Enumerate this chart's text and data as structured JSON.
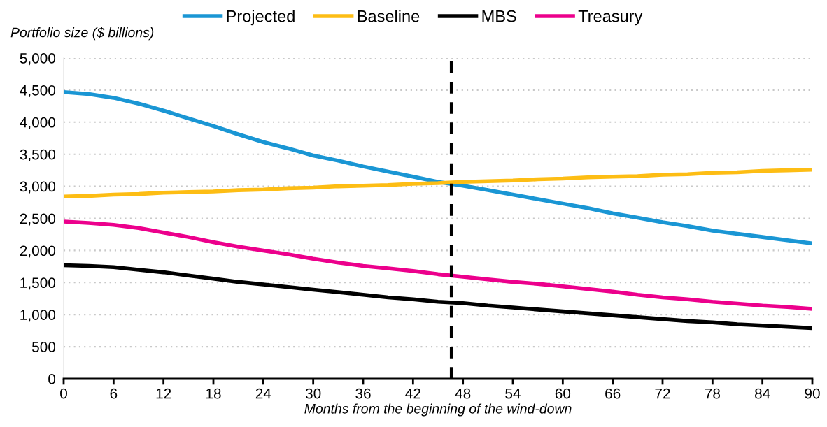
{
  "chart_data": {
    "type": "line",
    "xlabel": "Months from the beginning of the wind-down",
    "ylabel": "Portfolio size ($ billions)",
    "x": [
      0,
      3,
      6,
      9,
      12,
      15,
      18,
      21,
      24,
      27,
      30,
      33,
      36,
      39,
      42,
      45,
      48,
      51,
      54,
      57,
      60,
      63,
      66,
      69,
      72,
      75,
      78,
      81,
      84,
      87,
      90
    ],
    "series": [
      {
        "name": "Projected",
        "color": "#1a96d4",
        "values": [
          4470,
          4440,
          4380,
          4290,
          4180,
          4060,
          3940,
          3810,
          3690,
          3590,
          3480,
          3400,
          3310,
          3230,
          3150,
          3070,
          3010,
          2940,
          2870,
          2800,
          2730,
          2660,
          2580,
          2510,
          2440,
          2380,
          2310,
          2260,
          2210,
          2160,
          2110
        ]
      },
      {
        "name": "Baseline",
        "color": "#fdbd14",
        "values": [
          2840,
          2850,
          2870,
          2880,
          2900,
          2910,
          2920,
          2940,
          2950,
          2970,
          2980,
          3000,
          3010,
          3020,
          3040,
          3050,
          3070,
          3080,
          3090,
          3110,
          3120,
          3140,
          3150,
          3160,
          3180,
          3190,
          3210,
          3220,
          3240,
          3250,
          3260
        ]
      },
      {
        "name": "MBS",
        "color": "#000000",
        "values": [
          1770,
          1760,
          1740,
          1700,
          1660,
          1610,
          1560,
          1510,
          1470,
          1430,
          1390,
          1350,
          1310,
          1270,
          1240,
          1200,
          1180,
          1140,
          1110,
          1080,
          1050,
          1020,
          990,
          960,
          930,
          900,
          880,
          850,
          830,
          810,
          790
        ]
      },
      {
        "name": "Treasury",
        "color": "#ec008c",
        "values": [
          2450,
          2430,
          2400,
          2350,
          2280,
          2210,
          2130,
          2060,
          2000,
          1940,
          1870,
          1810,
          1760,
          1720,
          1680,
          1630,
          1590,
          1550,
          1510,
          1480,
          1440,
          1400,
          1360,
          1310,
          1270,
          1240,
          1200,
          1170,
          1140,
          1120,
          1090
        ]
      }
    ],
    "xlim": [
      0,
      90
    ],
    "xticks": [
      0,
      6,
      12,
      18,
      24,
      30,
      36,
      42,
      48,
      54,
      60,
      66,
      72,
      78,
      84,
      90
    ],
    "ylim": [
      0,
      5000
    ],
    "yticks": [
      {
        "value": 0,
        "label": "0"
      },
      {
        "value": 500,
        "label": "500"
      },
      {
        "value": 1000,
        "label": "1,000"
      },
      {
        "value": 1500,
        "label": "1,500"
      },
      {
        "value": 2000,
        "label": "2,000"
      },
      {
        "value": 2500,
        "label": "2,500"
      },
      {
        "value": 3000,
        "label": "3,000"
      },
      {
        "value": 3500,
        "label": "3,500"
      },
      {
        "value": 4000,
        "label": "4,000"
      },
      {
        "value": 4500,
        "label": "4,500"
      },
      {
        "value": 5000,
        "label": "5,000"
      }
    ],
    "ref_lines": [
      {
        "axis": "x",
        "value": 46.6,
        "color": "#000000",
        "line_style": "dashed"
      }
    ],
    "grid": "y",
    "legend": "top",
    "line_style": "solid",
    "marker": "none"
  }
}
